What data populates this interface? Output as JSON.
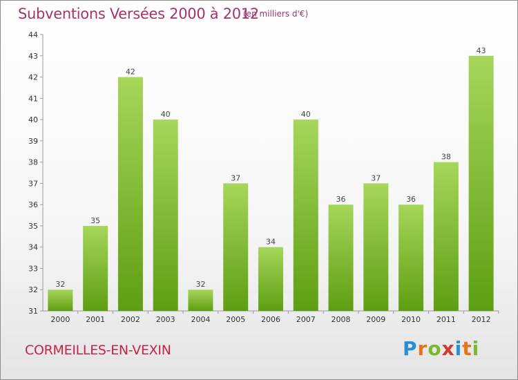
{
  "title": "Subventions Versées 2000 à 2012",
  "subtitle": "(en milliers d'€)",
  "city": "CORMEILLES-EN-VEXIN",
  "brand": {
    "letters": [
      "P",
      "r",
      "o",
      "x",
      "i",
      "t",
      "i"
    ],
    "colors": [
      "#2a8fd0",
      "#e8731c",
      "#7cb82f",
      "#d43a2a",
      "#2a8fd0",
      "#e8731c",
      "#7cb82f"
    ]
  },
  "colors": {
    "bar_top": "#a6d65a",
    "bar_bottom": "#5e9e12",
    "title": "#a8316a",
    "city": "#c0254a"
  },
  "chart_data": {
    "type": "bar",
    "categories": [
      "2000",
      "2001",
      "2002",
      "2003",
      "2004",
      "2005",
      "2006",
      "2007",
      "2008",
      "2009",
      "2010",
      "2011",
      "2012"
    ],
    "values": [
      32,
      35,
      42,
      40,
      32,
      37,
      34,
      40,
      36,
      37,
      36,
      38,
      43
    ],
    "title": "Subventions Versées 2000 à 2012",
    "ylim": [
      31,
      44
    ],
    "yticks": [
      31,
      32,
      33,
      34,
      35,
      36,
      37,
      38,
      39,
      40,
      41,
      42,
      43,
      44
    ],
    "grid": false,
    "data_labels": true
  }
}
